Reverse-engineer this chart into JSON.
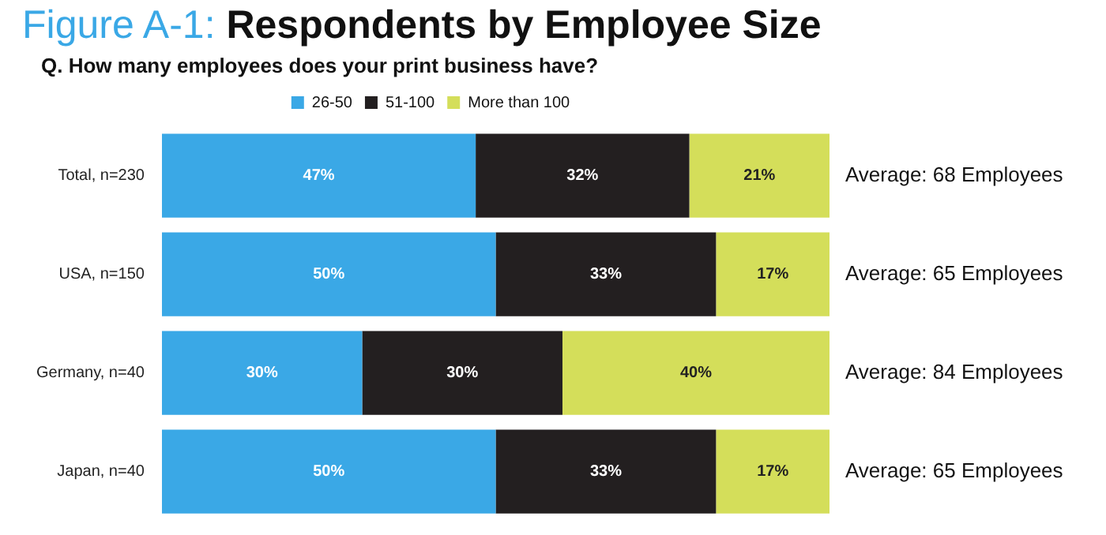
{
  "chart_data": {
    "type": "bar",
    "orientation": "horizontal",
    "stacked": true,
    "title": "Figure A-1: Respondents by Employee Size",
    "subtitle": "Q. How many employees does your print business have?",
    "categories": [
      "Total, n=230",
      "USA, n=150",
      "Germany, n=40",
      "Japan, n=40"
    ],
    "series": [
      {
        "name": "26-50",
        "color": "#3aa8e6",
        "values": [
          47,
          50,
          30,
          50
        ],
        "value_labels": [
          "47%",
          "50%",
          "30%",
          "50%"
        ]
      },
      {
        "name": "51-100",
        "color": "#231f20",
        "values": [
          32,
          33,
          30,
          33
        ],
        "value_labels": [
          "32%",
          "33%",
          "30%",
          "33%"
        ]
      },
      {
        "name": "More than 100",
        "color": "#d4de5a",
        "values": [
          21,
          17,
          40,
          17
        ],
        "value_labels": [
          "21%",
          "17%",
          "40%",
          "17%"
        ]
      }
    ],
    "legend": "top",
    "annotations": [
      "Average: 68 Employees",
      "Average: 65 Employees",
      "Average: 84 Employees",
      "Average: 65 Employees"
    ]
  }
}
